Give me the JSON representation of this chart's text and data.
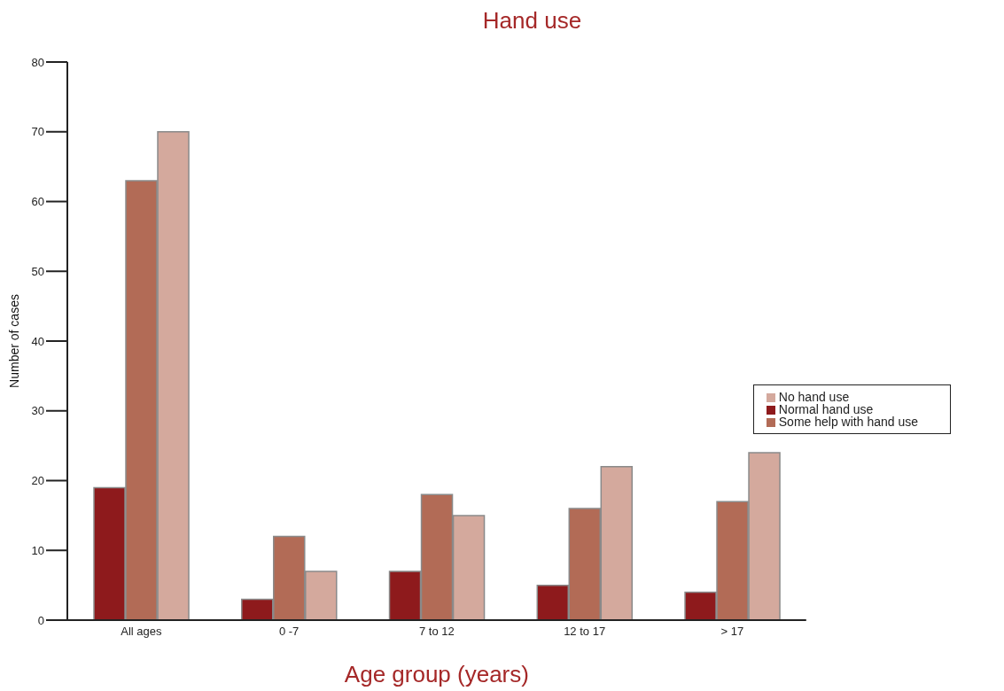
{
  "chart_data": {
    "type": "bar",
    "title": "Hand use",
    "xlabel": "Age group (years)",
    "ylabel": "Number of cases",
    "categories": [
      "All ages",
      "0 -7",
      "7 to 12",
      "12 to 17",
      "> 17"
    ],
    "series": [
      {
        "name": "Normal hand use",
        "color": "#8e1a1c",
        "values": [
          19,
          3,
          7,
          5,
          4
        ]
      },
      {
        "name": "Some help with hand use",
        "color": "#b26b56",
        "values": [
          63,
          12,
          18,
          16,
          17
        ]
      },
      {
        "name": "No hand use",
        "color": "#d4a99d",
        "values": [
          70,
          7,
          15,
          22,
          24
        ]
      }
    ],
    "ylim": [
      0,
      80
    ],
    "yticks": [
      0,
      10,
      20,
      30,
      40,
      50,
      60,
      70,
      80
    ],
    "grid": false,
    "legend": "right"
  }
}
